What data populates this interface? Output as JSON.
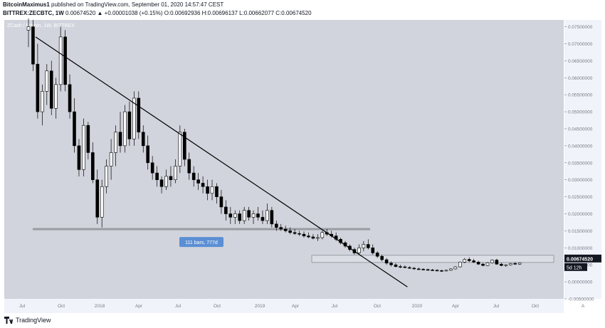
{
  "header": {
    "author": "BitcoinMaximus1",
    "published": "published on TradingView.com, September 01, 2020 14:57:47 CEST",
    "symbol": "BITTREX:ZECBTC, 1W",
    "ohlc": "0.00674520 ▲ +0.00001038 (+0.15%) O:0.00692936 H:0.00696137 L:0.00662077 C:0.00674520"
  },
  "chart_data": {
    "type": "candlestick",
    "title": "ZCash / Bitcoin, 1W, BITTREX",
    "x_ticks": [
      "Jul",
      "Oct",
      "2018",
      "Apr",
      "Jul",
      "Oct",
      "2019",
      "Apr",
      "Jul",
      "Oct",
      "2020",
      "Apr",
      "Jul",
      "Oct"
    ],
    "y_ticks": [
      "0.07500000",
      "0.07000000",
      "0.06500000",
      "0.06000000",
      "0.05500000",
      "0.05000000",
      "0.04500000",
      "0.04000000",
      "0.03500000",
      "0.03000000",
      "0.02500000",
      "0.02000000",
      "0.01500000",
      "0.01000000",
      "0.00500000",
      "0.00000000",
      "-0.00500000"
    ],
    "ylim": [
      -0.005,
      0.077
    ],
    "last_price": "0.00674520",
    "countdown": "5d 12h",
    "measure_label": "111 bars, 777d",
    "axis_mode": "A",
    "support_level": 0.0155,
    "range_box": [
      0.0057,
      0.0078
    ],
    "trendline": [
      [
        0,
        0.072
      ],
      [
        112,
        -0.0015
      ]
    ],
    "candles": [
      [
        0.074,
        0.08,
        0.069,
        0.075
      ],
      [
        0.075,
        0.077,
        0.062,
        0.064
      ],
      [
        0.064,
        0.07,
        0.048,
        0.05
      ],
      [
        0.05,
        0.058,
        0.046,
        0.056
      ],
      [
        0.056,
        0.064,
        0.052,
        0.062
      ],
      [
        0.062,
        0.065,
        0.049,
        0.051
      ],
      [
        0.051,
        0.06,
        0.048,
        0.058
      ],
      [
        0.058,
        0.075,
        0.056,
        0.072
      ],
      [
        0.072,
        0.074,
        0.056,
        0.058
      ],
      [
        0.058,
        0.061,
        0.048,
        0.05
      ],
      [
        0.05,
        0.054,
        0.038,
        0.04
      ],
      [
        0.04,
        0.042,
        0.031,
        0.033
      ],
      [
        0.033,
        0.048,
        0.031,
        0.046
      ],
      [
        0.046,
        0.047,
        0.036,
        0.038
      ],
      [
        0.038,
        0.041,
        0.029,
        0.03
      ],
      [
        0.03,
        0.033,
        0.017,
        0.019
      ],
      [
        0.019,
        0.03,
        0.016,
        0.028
      ],
      [
        0.028,
        0.036,
        0.026,
        0.034
      ],
      [
        0.034,
        0.042,
        0.03,
        0.038
      ],
      [
        0.038,
        0.046,
        0.034,
        0.044
      ],
      [
        0.044,
        0.05,
        0.038,
        0.04
      ],
      [
        0.04,
        0.052,
        0.038,
        0.05
      ],
      [
        0.05,
        0.053,
        0.04,
        0.042
      ],
      [
        0.042,
        0.056,
        0.04,
        0.054
      ],
      [
        0.054,
        0.056,
        0.042,
        0.044
      ],
      [
        0.044,
        0.046,
        0.038,
        0.04
      ],
      [
        0.04,
        0.043,
        0.033,
        0.035
      ],
      [
        0.035,
        0.037,
        0.03,
        0.032
      ],
      [
        0.032,
        0.034,
        0.028,
        0.03
      ],
      [
        0.03,
        0.031,
        0.026,
        0.028
      ],
      [
        0.028,
        0.033,
        0.027,
        0.031
      ],
      [
        0.031,
        0.034,
        0.028,
        0.03
      ],
      [
        0.03,
        0.036,
        0.029,
        0.034
      ],
      [
        0.034,
        0.046,
        0.032,
        0.044
      ],
      [
        0.044,
        0.045,
        0.034,
        0.036
      ],
      [
        0.036,
        0.038,
        0.03,
        0.032
      ],
      [
        0.032,
        0.034,
        0.028,
        0.03
      ],
      [
        0.03,
        0.032,
        0.027,
        0.029
      ],
      [
        0.029,
        0.031,
        0.026,
        0.028
      ],
      [
        0.028,
        0.03,
        0.024,
        0.026
      ],
      [
        0.026,
        0.03,
        0.024,
        0.028
      ],
      [
        0.028,
        0.029,
        0.023,
        0.025
      ],
      [
        0.025,
        0.027,
        0.02,
        0.022
      ],
      [
        0.022,
        0.024,
        0.018,
        0.02
      ],
      [
        0.02,
        0.022,
        0.017,
        0.019
      ],
      [
        0.019,
        0.021,
        0.017,
        0.02
      ],
      [
        0.02,
        0.021,
        0.017,
        0.018
      ],
      [
        0.018,
        0.022,
        0.017,
        0.021
      ],
      [
        0.021,
        0.022,
        0.018,
        0.019
      ],
      [
        0.019,
        0.021,
        0.017,
        0.02
      ],
      [
        0.02,
        0.022,
        0.018,
        0.019
      ],
      [
        0.019,
        0.021,
        0.017,
        0.018
      ],
      [
        0.018,
        0.023,
        0.017,
        0.021
      ],
      [
        0.021,
        0.022,
        0.016,
        0.017
      ],
      [
        0.017,
        0.018,
        0.015,
        0.016
      ],
      [
        0.016,
        0.017,
        0.015,
        0.0155
      ],
      [
        0.0155,
        0.0165,
        0.0145,
        0.015
      ],
      [
        0.015,
        0.016,
        0.014,
        0.0145
      ],
      [
        0.0145,
        0.0155,
        0.0138,
        0.0142
      ],
      [
        0.0142,
        0.015,
        0.0135,
        0.014
      ],
      [
        0.014,
        0.0148,
        0.013,
        0.0135
      ],
      [
        0.0135,
        0.0145,
        0.0128,
        0.0132
      ],
      [
        0.0132,
        0.014,
        0.0125,
        0.0128
      ],
      [
        0.0128,
        0.014,
        0.012,
        0.013
      ],
      [
        0.013,
        0.015,
        0.0125,
        0.0145
      ],
      [
        0.0145,
        0.0155,
        0.0135,
        0.014
      ],
      [
        0.014,
        0.015,
        0.013,
        0.0135
      ],
      [
        0.0135,
        0.0145,
        0.012,
        0.0125
      ],
      [
        0.0125,
        0.013,
        0.011,
        0.0115
      ],
      [
        0.0115,
        0.012,
        0.01,
        0.0105
      ],
      [
        0.0105,
        0.011,
        0.009,
        0.0095
      ],
      [
        0.0095,
        0.01,
        0.008,
        0.0085
      ],
      [
        0.0085,
        0.011,
        0.008,
        0.01
      ],
      [
        0.01,
        0.012,
        0.009,
        0.011
      ],
      [
        0.011,
        0.0125,
        0.0095,
        0.01
      ],
      [
        0.01,
        0.011,
        0.008,
        0.0085
      ],
      [
        0.0085,
        0.009,
        0.007,
        0.0075
      ],
      [
        0.0075,
        0.008,
        0.006,
        0.0065
      ],
      [
        0.0065,
        0.007,
        0.005,
        0.0055
      ],
      [
        0.0055,
        0.006,
        0.0045,
        0.005
      ],
      [
        0.005,
        0.0055,
        0.0042,
        0.0045
      ],
      [
        0.0045,
        0.005,
        0.004,
        0.0044
      ],
      [
        0.0044,
        0.0048,
        0.004,
        0.0042
      ],
      [
        0.0042,
        0.0046,
        0.0038,
        0.004
      ],
      [
        0.004,
        0.0044,
        0.0036,
        0.0038
      ],
      [
        0.0038,
        0.0042,
        0.0035,
        0.0037
      ],
      [
        0.0037,
        0.004,
        0.0034,
        0.0036
      ],
      [
        0.0036,
        0.0039,
        0.0033,
        0.0035
      ],
      [
        0.0035,
        0.0038,
        0.0032,
        0.0034
      ],
      [
        0.0034,
        0.0037,
        0.0031,
        0.0033
      ],
      [
        0.0033,
        0.0036,
        0.003,
        0.0032
      ],
      [
        0.0032,
        0.0036,
        0.003,
        0.0034
      ],
      [
        0.0034,
        0.004,
        0.0032,
        0.0038
      ],
      [
        0.0038,
        0.0046,
        0.0036,
        0.0044
      ],
      [
        0.0044,
        0.006,
        0.0042,
        0.0058
      ],
      [
        0.0058,
        0.007,
        0.0055,
        0.0066
      ],
      [
        0.0066,
        0.0072,
        0.0058,
        0.0062
      ],
      [
        0.0062,
        0.0068,
        0.0055,
        0.0058
      ],
      [
        0.0058,
        0.0062,
        0.005,
        0.0052
      ],
      [
        0.0052,
        0.0056,
        0.0046,
        0.0048
      ],
      [
        0.0048,
        0.0058,
        0.0046,
        0.0056
      ],
      [
        0.0056,
        0.0066,
        0.0054,
        0.0064
      ],
      [
        0.0064,
        0.0068,
        0.005,
        0.0052
      ],
      [
        0.0052,
        0.0056,
        0.0046,
        0.0048
      ],
      [
        0.0048,
        0.0052,
        0.0044,
        0.005
      ],
      [
        0.005,
        0.0056,
        0.0048,
        0.0054
      ],
      [
        0.0054,
        0.0058,
        0.005,
        0.0052
      ],
      [
        0.0052,
        0.0056,
        0.005,
        0.0055
      ],
      [
        0.0055,
        0.0062,
        0.0053,
        0.006
      ],
      [
        0.006,
        0.0066,
        0.0058,
        0.0064
      ],
      [
        0.0064,
        0.008,
        0.0062,
        0.0076
      ],
      [
        0.0076,
        0.0082,
        0.0068,
        0.007
      ],
      [
        0.007,
        0.0074,
        0.0064,
        0.0069
      ],
      [
        0.0069,
        0.007,
        0.0066,
        0.0067
      ]
    ]
  }
}
